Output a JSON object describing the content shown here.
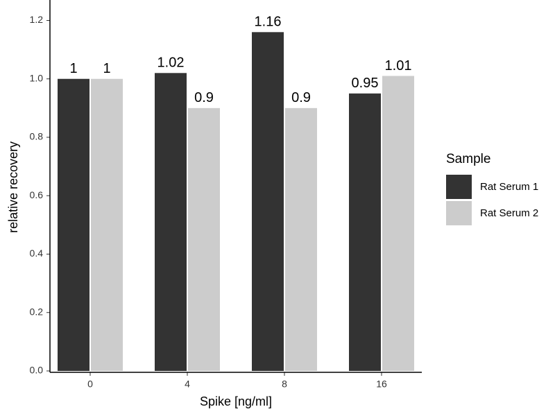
{
  "chart_data": {
    "type": "bar",
    "x_label": "Spike [ng/ml]",
    "y_label": "relative recovery",
    "categories": [
      "0",
      "4",
      "8",
      "16"
    ],
    "series": [
      {
        "name": "Rat Serum 1",
        "color": "#333333",
        "values": [
          1,
          1.02,
          1.16,
          0.95
        ]
      },
      {
        "name": "Rat Serum 2",
        "color": "#cccccc",
        "values": [
          1,
          0.9,
          0.9,
          1.01
        ]
      }
    ],
    "ylim": [
      0,
      1.27
    ],
    "yticks": [
      {
        "value": 0,
        "label": "0.0"
      },
      0.2,
      0.4,
      0.6,
      0.8,
      {
        "value": 1,
        "label": "1.0"
      },
      1.2
    ],
    "legend_title": "Sample",
    "legend_position": "right"
  }
}
